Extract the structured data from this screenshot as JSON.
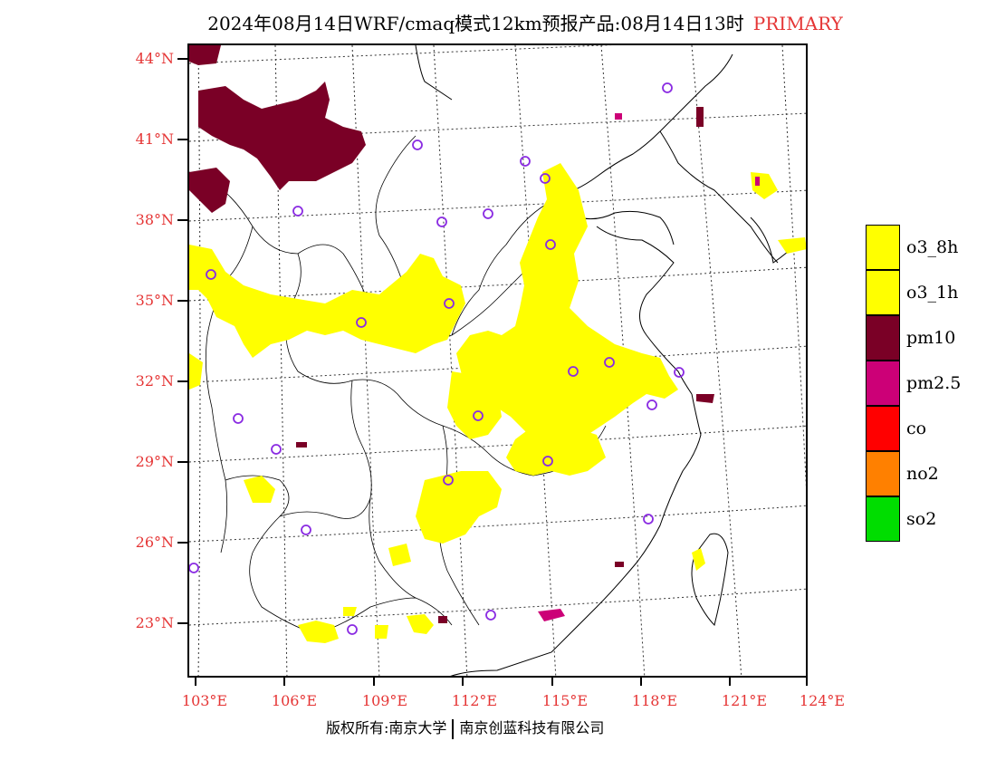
{
  "header": {
    "title": "2024年08月14日WRF/cmaq模式12km预报产品:08月14日13时",
    "tag": "PRIMARY"
  },
  "axes": {
    "lat_labels": [
      "44°N",
      "41°N",
      "38°N",
      "35°N",
      "32°N",
      "29°N",
      "26°N",
      "23°N"
    ],
    "lon_labels": [
      "103°E",
      "106°E",
      "109°E",
      "112°E",
      "115°E",
      "118°E",
      "121°E",
      "124°E"
    ]
  },
  "legend": {
    "items": [
      {
        "label": "o3_8h",
        "color": "#ffff00"
      },
      {
        "label": "o3_1h",
        "color": "#ffff00"
      },
      {
        "label": "pm10",
        "color": "#7a0026"
      },
      {
        "label": "pm2.5",
        "color": "#cc0077"
      },
      {
        "label": "co",
        "color": "#ff0000"
      },
      {
        "label": "no2",
        "color": "#ff8000"
      },
      {
        "label": "so2",
        "color": "#00dd00"
      }
    ]
  },
  "footer": {
    "copyright_left": "版权所有:南京大学",
    "copyright_right": "南京创蓝科技有限公司"
  },
  "colors": {
    "ozone": "#ffff00",
    "pm10": "#7a0026",
    "pm25": "#cc0077",
    "station": "#8a2be2",
    "axis_label": "#e53535"
  }
}
